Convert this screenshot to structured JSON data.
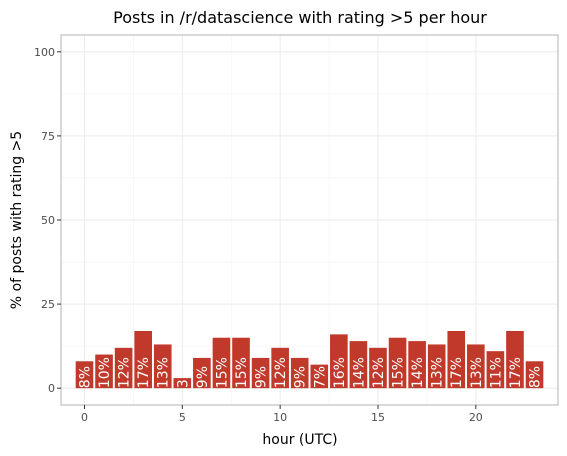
{
  "chart_data": {
    "type": "bar",
    "title": "Posts in /r/datascience with rating >5 per hour",
    "xlabel": "hour (UTC)",
    "ylabel": "% of posts with rating >5",
    "x": [
      0,
      1,
      2,
      3,
      4,
      5,
      6,
      7,
      8,
      9,
      10,
      11,
      12,
      13,
      14,
      15,
      16,
      17,
      18,
      19,
      20,
      21,
      22,
      23
    ],
    "values": [
      8,
      10,
      12,
      17,
      13,
      3,
      9,
      15,
      15,
      9,
      12,
      9,
      7,
      16,
      14,
      12,
      15,
      14,
      13,
      17,
      13,
      11,
      17,
      8
    ],
    "value_labels": [
      "8%",
      "10%",
      "12%",
      "17%",
      "13%",
      "3",
      "9%",
      "15%",
      "15%",
      "9%",
      "12%",
      "9%",
      "7%",
      "16%",
      "14%",
      "12%",
      "15%",
      "14%",
      "13%",
      "17%",
      "13%",
      "11%",
      "17%",
      "8%"
    ],
    "xlim": [
      -1.2,
      24.2
    ],
    "ylim": [
      -5,
      105
    ],
    "xticks": [
      0,
      5,
      10,
      15,
      20
    ],
    "xtick_labels": [
      "0",
      "5",
      "10",
      "15",
      "20"
    ],
    "yticks": [
      0,
      25,
      50,
      75,
      100
    ],
    "ytick_labels": [
      "0",
      "25",
      "50",
      "75",
      "100"
    ],
    "grid": true,
    "bar_color": "#c0392b",
    "panel_border_color": "#b3b3b3",
    "grid_major_color": "#ebebeb",
    "grid_minor_color": "#f5f5f5",
    "legend": "none"
  }
}
